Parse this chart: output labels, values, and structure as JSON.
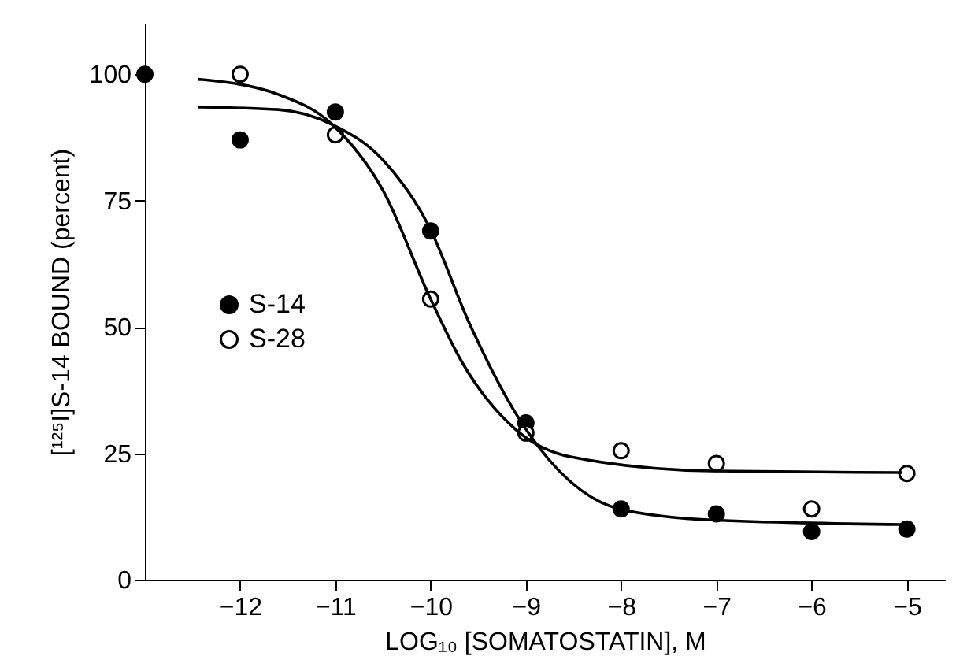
{
  "chart_data": {
    "type": "scatter",
    "xlabel": "LOG₁₀ [SOMATOSTATIN], M",
    "ylabel": "[¹²⁵I]S-14 BOUND (percent)",
    "xlim": [
      -13,
      -4.6
    ],
    "xticks": [
      -12,
      -11,
      -10,
      -9,
      -8,
      -7,
      -6,
      -5
    ],
    "ylim": [
      0,
      110
    ],
    "yticks": [
      0,
      25,
      50,
      75,
      100
    ],
    "grid": false,
    "legend": "left",
    "marker": "circle",
    "series": [
      {
        "name": "S-14",
        "color": "#000000",
        "x": [
          -13,
          -12,
          -11,
          -10,
          -9,
          -8,
          -7,
          -6,
          -5
        ],
        "values": [
          100,
          87,
          92.5,
          69,
          31,
          14,
          13,
          9.5,
          10
        ]
      },
      {
        "name": "S-28",
        "color": "#ffffff",
        "x": [
          -12,
          -11,
          -10,
          -9,
          -8,
          -7,
          -6,
          -5
        ],
        "values": [
          100,
          88,
          55.5,
          29,
          25.5,
          23,
          14,
          21
        ]
      },
      {
        "type": "line",
        "marker": "none",
        "color": "#000000",
        "x": [
          -12.44,
          -11.6,
          -11.03,
          -10.5,
          -10.02,
          -9.6,
          -9.1,
          -8.02,
          -7.05,
          -5.05
        ],
        "values": [
          93.5,
          93,
          90,
          83,
          70,
          51,
          32.7,
          14,
          11.8,
          10.9
        ]
      },
      {
        "type": "line",
        "marker": "none",
        "color": "#000000",
        "x": [
          -12.44,
          -11.6,
          -11.03,
          -10.5,
          -10.0,
          -9.67,
          -9.1,
          -8.53,
          -7.05,
          -5.05
        ],
        "values": [
          99,
          96,
          90,
          77,
          55.5,
          43,
          29.6,
          24.3,
          21.5,
          21.2
        ]
      }
    ]
  }
}
